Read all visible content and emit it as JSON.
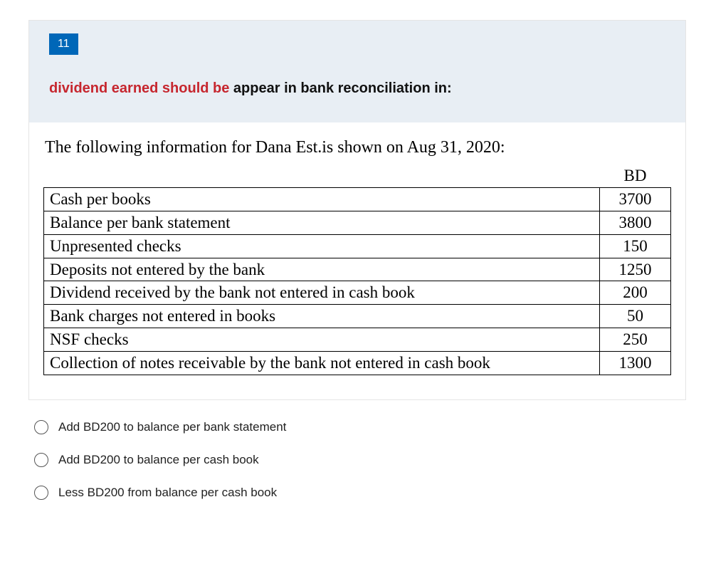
{
  "question": {
    "number": "11",
    "prompt_red": "dividend earned should be",
    "prompt_rest": " appear in bank reconciliation in:"
  },
  "passage": {
    "intro": "The following information for Dana Est.is shown on Aug 31, 2020:",
    "headers": {
      "blank": "",
      "bd": "BD"
    },
    "rows": [
      {
        "label": "Cash  per books",
        "value": "3700"
      },
      {
        "label": "Balance per bank statement",
        "value": "3800"
      },
      {
        "label": "Unpresented checks",
        "value": "150"
      },
      {
        "label": "Deposits not entered by the bank",
        "value": "1250"
      },
      {
        "label": "Dividend received by the bank not entered in cash book",
        "value": "200"
      },
      {
        "label": "Bank charges not entered in books",
        "value": "50"
      },
      {
        "label": "NSF checks",
        "value": "250"
      },
      {
        "label": "Collection of notes receivable by the bank not entered in cash book",
        "value": "1300"
      }
    ]
  },
  "options": [
    "Add BD200 to balance per bank statement",
    "Add BD200 to balance per cash book",
    "Less BD200 from balance per cash book"
  ],
  "colors": {
    "header_bg": "#e8eef4",
    "badge_bg": "#0067b8",
    "badge_fg": "#ffffff",
    "prompt_red": "#c6262e",
    "border": "#e5e5e5",
    "radio_border": "#555"
  }
}
